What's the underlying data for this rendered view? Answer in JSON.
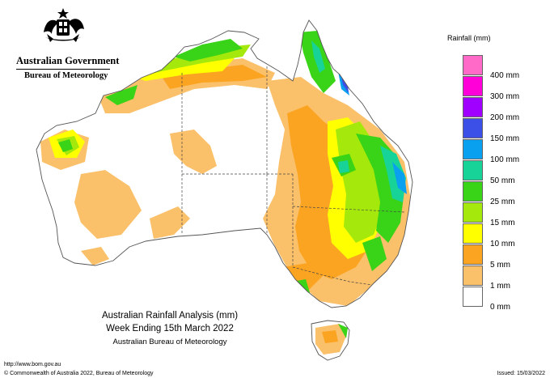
{
  "header": {
    "government": "Australian Government",
    "bureau": "Bureau of Meteorology"
  },
  "map": {
    "legend_title": "Rainfall (mm)",
    "legend": [
      {
        "label": "",
        "color": "#ff69c8"
      },
      {
        "label": "400 mm",
        "color": "#ff00d8"
      },
      {
        "label": "300 mm",
        "color": "#a000ff"
      },
      {
        "label": "200 mm",
        "color": "#3c50e8"
      },
      {
        "label": "150 mm",
        "color": "#0aa0f0"
      },
      {
        "label": "100 mm",
        "color": "#17d398"
      },
      {
        "label": "50 mm",
        "color": "#39d317"
      },
      {
        "label": "25 mm",
        "color": "#a5e80b"
      },
      {
        "label": "15 mm",
        "color": "#ffff00"
      },
      {
        "label": "10 mm",
        "color": "#fba422"
      },
      {
        "label": "5 mm",
        "color": "#fbc06a"
      },
      {
        "label": "1 mm",
        "color": "#ffffff"
      },
      {
        "label": "0 mm",
        "color": "#ffffff"
      }
    ],
    "region_colors": {
      "land": "#ffffff",
      "outline": "#555555",
      "border": "#444444"
    }
  },
  "caption": {
    "line1": "Australian Rainfall Analysis (mm)",
    "line2": "Week Ending 15th March 2022",
    "line3": "Australian Bureau of Meteorology"
  },
  "footer": {
    "url": "http://www.bom.gov.au",
    "copyright": "© Commonwealth of Australia 2022, Bureau of Meteorology",
    "issued": "Issued: 15/03/2022"
  }
}
